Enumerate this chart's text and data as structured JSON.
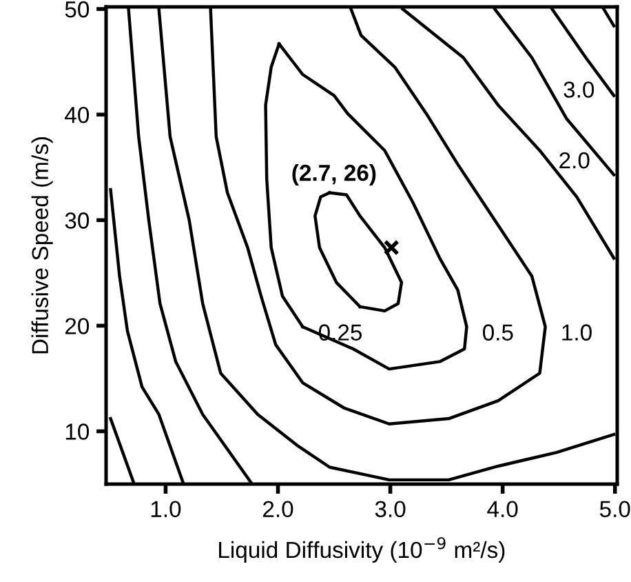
{
  "chart_data": {
    "type": "line",
    "xlabel": "Liquid Diffusivity (10$^{−9}$ m²/s)",
    "ylabel": "Diffusive Speed (m/s)",
    "xlim": [
      0.47,
      5.02
    ],
    "ylim": [
      5,
      50.2
    ],
    "xticks": [
      {
        "value": 1,
        "label": "1.0"
      },
      {
        "value": 2,
        "label": "2.0"
      },
      {
        "value": 3,
        "label": "3.0"
      },
      {
        "value": 4,
        "label": "4.0"
      },
      {
        "value": 5,
        "label": "5.0"
      }
    ],
    "yticks": [
      10,
      20,
      30,
      40,
      50
    ],
    "grid": false,
    "legend": false,
    "marker": "none",
    "line_style": "solid",
    "series": [
      {
        "color": "#000000",
        "x": [
          0.51,
          0.72
        ],
        "values": [
          11.2,
          5.0
        ]
      },
      {
        "color": "#000000",
        "x": [
          0.51,
          0.59,
          0.66,
          0.79,
          0.94,
          1.16
        ],
        "values": [
          32.9,
          24.7,
          19.5,
          14.2,
          11.6,
          5.0
        ]
      },
      {
        "color": "#000000",
        "x": [
          0.67,
          0.76,
          0.85,
          0.95,
          1.09,
          1.33,
          1.51,
          1.77
        ],
        "values": [
          50,
          37.9,
          30.0,
          22.1,
          16.6,
          11.6,
          8.9,
          5.0
        ]
      },
      {
        "color": "#000000",
        "x": [
          0.94,
          1.04,
          1.21,
          1.33,
          1.49,
          1.82,
          2.18,
          2.46,
          2.99,
          3.52,
          3.96,
          4.48,
          4.99
        ],
        "values": [
          50,
          37.9,
          30.0,
          22.1,
          15.5,
          11.6,
          8.6,
          6.6,
          5.4,
          5.4,
          6.7,
          8.0,
          9.7
        ]
      },
      {
        "color": "#000000",
        "x": [
          1.4,
          1.45,
          1.55,
          1.73,
          1.85,
          1.98,
          2.22,
          2.59,
          2.99,
          3.52,
          3.96,
          4.33,
          4.38,
          4.26,
          3.93,
          3.6,
          3.32,
          3.04,
          2.74,
          2.65
        ],
        "values": [
          50,
          37.9,
          32.6,
          27.4,
          22.8,
          18.2,
          14.6,
          12.2,
          10.7,
          11.2,
          12.9,
          15.5,
          19.9,
          24.7,
          30.0,
          35.3,
          40.1,
          44.5,
          47.5,
          50
        ]
      },
      {
        "color": "#000000",
        "x": [
          2.01,
          2.22,
          2.5,
          2.62,
          2.95,
          3.2,
          3.44,
          3.6,
          3.68,
          3.66,
          3.44,
          2.99,
          2.67,
          2.22
        ],
        "values": [
          46.7,
          43.8,
          41.8,
          40.1,
          36.6,
          31.7,
          26.4,
          23.4,
          19.9,
          17.8,
          16.6,
          15.9,
          17.8,
          19.9
        ]
      },
      {
        "color": "#000000",
        "x": [
          2.22,
          2.04,
          1.94,
          1.9,
          1.89,
          1.94,
          2.01
        ],
        "values": [
          19.9,
          22.8,
          27.4,
          33.9,
          40.9,
          44.5,
          46.7
        ]
      },
      {
        "color": "#000000",
        "x": [
          3.11,
          3.65,
          3.96,
          4.33,
          4.66,
          4.99
        ],
        "values": [
          50,
          45.4,
          40.9,
          36.6,
          32.2,
          26.4
        ]
      },
      {
        "color": "#000000",
        "x": [
          3.93,
          4.26,
          4.57,
          4.99
        ],
        "values": [
          50,
          45.4,
          39.6,
          34.3
        ]
      },
      {
        "color": "#000000",
        "x": [
          4.44,
          4.74,
          4.99
        ],
        "values": [
          50,
          45.4,
          41.8
        ]
      },
      {
        "color": "#000000",
        "x": [
          4.9,
          4.99
        ],
        "values": [
          50,
          48.4
        ]
      },
      {
        "color": "#000000",
        "x": [
          2.46,
          2.61,
          2.73,
          2.95,
          3.1,
          3.07,
          2.95,
          2.73
        ],
        "values": [
          32.6,
          32.4,
          30.4,
          27.4,
          24.1,
          22.1,
          21.4,
          21.8
        ]
      },
      {
        "color": "#000000",
        "x": [
          2.73,
          2.52,
          2.37,
          2.33,
          2.38,
          2.46
        ],
        "values": [
          21.8,
          24.1,
          27.4,
          30.4,
          32.2,
          32.6
        ]
      },
      {
        "type": "scatter",
        "color": "#000000",
        "marker": "cross",
        "x": [
          3.01
        ],
        "values": [
          27.4
        ]
      }
    ],
    "annotations": [
      {
        "text": "(2.7, 26)",
        "x": 3.01,
        "y": 27.4
      },
      {
        "text": "0.25",
        "x": 2.22,
        "y": 19.9
      },
      {
        "text": "0.5",
        "x": 3.68,
        "y": 19.9
      },
      {
        "text": "1.0",
        "x": 4.38,
        "y": 19.9
      },
      {
        "text": "2.0",
        "x": 4.36,
        "y": 36.2
      },
      {
        "text": "3.0",
        "x": 4.4,
        "y": 42.9
      }
    ]
  }
}
